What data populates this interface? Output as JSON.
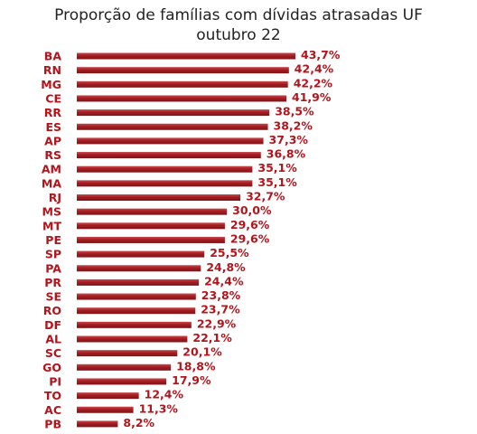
{
  "chart_data": {
    "type": "bar",
    "orientation": "horizontal",
    "title": "Proporção de famílias com dívidas atrasadas UF",
    "subtitle": "outubro  22",
    "categories": [
      "BA",
      "RN",
      "MG",
      "CE",
      "RR",
      "ES",
      "AP",
      "RS",
      "AM",
      "MA",
      "RJ",
      "MS",
      "MT",
      "PE",
      "SP",
      "PA",
      "PR",
      "SE",
      "RO",
      "DF",
      "AL",
      "SC",
      "GO",
      "PI",
      "TO",
      "AC",
      "PB"
    ],
    "values": [
      43.7,
      42.4,
      42.2,
      41.9,
      38.5,
      38.2,
      37.3,
      36.8,
      35.1,
      35.1,
      32.7,
      30.0,
      29.6,
      29.6,
      25.5,
      24.8,
      24.4,
      23.8,
      23.7,
      22.9,
      22.1,
      20.1,
      18.8,
      17.9,
      12.4,
      11.3,
      8.2
    ],
    "value_labels": [
      "43,7%",
      "42,4%",
      "42,2%",
      "41,9%",
      "38,5%",
      "38,2%",
      "37,3%",
      "36,8%",
      "35,1%",
      "35,1%",
      "32,7%",
      "30,0%",
      "29,6%",
      "29,6%",
      "25,5%",
      "24,8%",
      "24,4%",
      "23,8%",
      "23,7%",
      "22,9%",
      "22,1%",
      "20,1%",
      "18,8%",
      "17,9%",
      "12,4%",
      "11,3%",
      "8,2%"
    ],
    "xlim": [
      0,
      43.7
    ],
    "grid": false,
    "legend": "none",
    "colors": {
      "bar": "#a31d22",
      "bar_highlight": "#c9484c",
      "label": "#b3141c"
    }
  }
}
